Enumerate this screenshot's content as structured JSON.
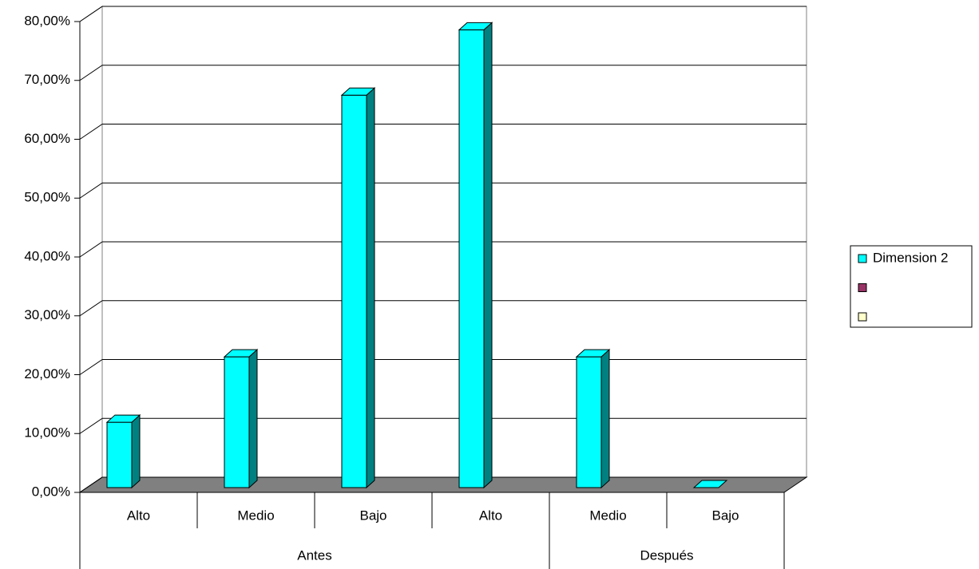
{
  "chart_data": {
    "type": "bar3d",
    "categories": [
      "Alto",
      "Medio",
      "Bajo",
      "Alto",
      "Medio",
      "Bajo"
    ],
    "category_groups": [
      {
        "label": "Antes",
        "start": 0,
        "end": 3
      },
      {
        "label": "Después",
        "start": 4,
        "end": 5
      }
    ],
    "series": [
      {
        "name": "Dimension 2",
        "color": "#00ffff",
        "values": [
          11.11,
          22.22,
          66.67,
          77.78,
          22.22,
          0
        ]
      },
      {
        "name": null,
        "color": "#993366",
        "values": [
          null,
          null,
          null,
          null,
          null,
          null
        ]
      },
      {
        "name": null,
        "color": "#ffffcc",
        "values": [
          null,
          null,
          null,
          null,
          null,
          null
        ]
      }
    ],
    "ylim": [
      0,
      80
    ],
    "yticks": [
      {
        "value": 0,
        "label": "0,00%"
      },
      {
        "value": 10,
        "label": "10,00%"
      },
      {
        "value": 20,
        "label": "20,00%"
      },
      {
        "value": 30,
        "label": "30,00%"
      },
      {
        "value": 40,
        "label": "40,00%"
      },
      {
        "value": 50,
        "label": "50,00%"
      },
      {
        "value": 60,
        "label": "60,00%"
      },
      {
        "value": 70,
        "label": "70,00%"
      },
      {
        "value": 80,
        "label": "80,00%"
      }
    ],
    "grid": true,
    "legend": "right"
  }
}
